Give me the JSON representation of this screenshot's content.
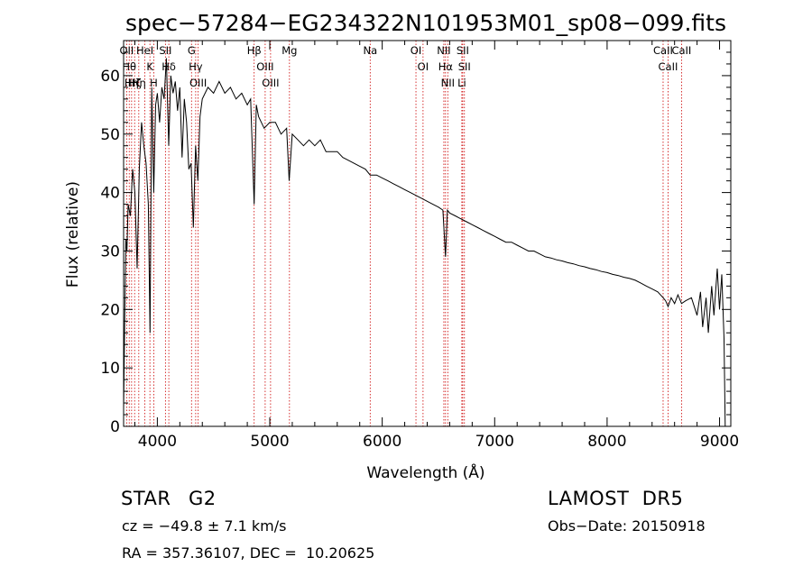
{
  "chart_data": {
    "type": "line",
    "title": "spec−57284−EG234322N101953M01_sp08−099.fits",
    "xlabel": "Wavelength (Å)",
    "ylabel": "Flux (relative)",
    "xlim": [
      3700,
      9100
    ],
    "ylim": [
      0,
      66
    ],
    "xticks": [
      4000,
      5000,
      6000,
      7000,
      8000,
      9000
    ],
    "yticks": [
      0,
      10,
      20,
      30,
      40,
      50,
      60
    ],
    "line_color": "#000000",
    "marker_color": "#cc0000",
    "series": [
      {
        "x": [
          3700,
          3710,
          3720,
          3730,
          3740,
          3760,
          3780,
          3800,
          3820,
          3840,
          3860,
          3880,
          3900,
          3920,
          3935,
          3950,
          3968,
          3985,
          4000,
          4020,
          4040,
          4060,
          4080,
          4101,
          4120,
          4140,
          4160,
          4180,
          4200,
          4220,
          4240,
          4260,
          4280,
          4300,
          4320,
          4340,
          4360,
          4380,
          4400,
          4450,
          4500,
          4550,
          4600,
          4650,
          4700,
          4750,
          4800,
          4830,
          4861,
          4880,
          4900,
          4950,
          5000,
          5050,
          5100,
          5150,
          5172,
          5200,
          5250,
          5300,
          5350,
          5400,
          5450,
          5500,
          5550,
          5600,
          5650,
          5700,
          5750,
          5800,
          5850,
          5893,
          5950,
          6000,
          6050,
          6100,
          6150,
          6200,
          6250,
          6300,
          6350,
          6400,
          6450,
          6500,
          6540,
          6563,
          6580,
          6600,
          6650,
          6700,
          6750,
          6800,
          6850,
          6900,
          6950,
          7000,
          7050,
          7100,
          7150,
          7200,
          7250,
          7300,
          7350,
          7400,
          7450,
          7500,
          7550,
          7600,
          7650,
          7700,
          7750,
          7800,
          7850,
          7900,
          7950,
          8000,
          8050,
          8100,
          8150,
          8200,
          8250,
          8300,
          8350,
          8400,
          8450,
          8498,
          8520,
          8542,
          8570,
          8600,
          8630,
          8662,
          8700,
          8750,
          8800,
          8830,
          8850,
          8880,
          8900,
          8930,
          8950,
          8980,
          9000,
          9020,
          9040,
          9050
        ],
        "y": [
          3,
          18,
          32,
          30,
          38,
          36,
          44,
          40,
          27,
          44,
          52,
          48,
          45,
          38,
          16,
          58,
          40,
          55,
          57,
          52,
          58,
          56,
          63,
          48,
          60,
          57,
          59,
          54,
          58,
          46,
          56,
          52,
          44,
          45,
          34,
          48,
          42,
          53,
          56,
          58,
          57,
          59,
          57,
          58,
          56,
          57,
          55,
          56,
          38,
          55,
          53,
          51,
          52,
          52,
          50,
          51,
          42,
          50,
          49,
          48,
          49,
          48,
          49,
          47,
          47,
          47,
          46,
          45.5,
          45,
          44.5,
          44,
          43,
          43,
          42.5,
          42,
          41.5,
          41,
          40.5,
          40,
          39.5,
          39,
          38.5,
          38,
          37.5,
          37,
          29,
          37,
          36.5,
          36,
          35.5,
          35,
          34.5,
          34,
          33.5,
          33,
          32.5,
          32,
          31.5,
          31.5,
          31,
          30.5,
          30,
          30,
          29.5,
          29,
          28.8,
          28.5,
          28.3,
          28,
          27.8,
          27.5,
          27.3,
          27,
          26.8,
          26.5,
          26.3,
          26,
          25.8,
          25.5,
          25.3,
          25,
          24.5,
          24,
          23.5,
          23,
          22,
          21.5,
          20.5,
          22,
          21,
          22.5,
          21,
          21.5,
          22,
          19,
          23,
          17,
          22,
          16,
          24,
          19,
          27,
          20,
          26,
          15,
          0
        ]
      }
    ],
    "lines": [
      {
        "x": 3727,
        "labels": [
          "OII"
        ]
      },
      {
        "x": 3750,
        "labels": [
          "Hθ"
        ]
      },
      {
        "x": 3771,
        "labels": [
          "Hη"
        ]
      },
      {
        "x": 3798,
        "labels": [
          "Hζ"
        ]
      },
      {
        "x": 3835,
        "labels": [
          "Hη"
        ]
      },
      {
        "x": 3889,
        "labels": [
          "HeI"
        ]
      },
      {
        "x": 3934,
        "labels": [
          "K"
        ]
      },
      {
        "x": 3968,
        "labels": [
          "H"
        ]
      },
      {
        "x": 4072,
        "labels": [
          "SII"
        ]
      },
      {
        "x": 4102,
        "labels": [
          "Hδ"
        ]
      },
      {
        "x": 4304,
        "labels": [
          "G"
        ]
      },
      {
        "x": 4341,
        "labels": [
          "Hγ"
        ]
      },
      {
        "x": 4363,
        "labels": [
          "OIII"
        ]
      },
      {
        "x": 4861,
        "labels": [
          "Hβ"
        ]
      },
      {
        "x": 4959,
        "labels": [
          "OIII"
        ]
      },
      {
        "x": 5007,
        "labels": [
          "OIII"
        ]
      },
      {
        "x": 5175,
        "labels": [
          "Mg"
        ]
      },
      {
        "x": 5893,
        "labels": [
          "Na"
        ]
      },
      {
        "x": 6300,
        "labels": [
          "OI"
        ]
      },
      {
        "x": 6363,
        "labels": [
          "OI"
        ]
      },
      {
        "x": 6548,
        "labels": [
          "NII"
        ]
      },
      {
        "x": 6563,
        "labels": [
          "Hα"
        ]
      },
      {
        "x": 6583,
        "labels": [
          "NII"
        ]
      },
      {
        "x": 6708,
        "labels": [
          "Li"
        ]
      },
      {
        "x": 6716,
        "labels": [
          "SII"
        ]
      },
      {
        "x": 6731,
        "labels": [
          "SII"
        ]
      },
      {
        "x": 8498,
        "labels": [
          "CaII"
        ]
      },
      {
        "x": 8542,
        "labels": [
          "CaII"
        ]
      },
      {
        "x": 8662,
        "labels": [
          "CaII"
        ]
      }
    ],
    "grid": false,
    "legend": "none"
  },
  "info": {
    "object_class": "STAR",
    "subclass": "G2",
    "survey": "LAMOST  DR5",
    "cz": "cz = −49.8 ± 7.1 km/s",
    "obs_date": "Obs−Date: 20150918",
    "coords": "RA = 357.36107, DEC =  10.20625"
  }
}
